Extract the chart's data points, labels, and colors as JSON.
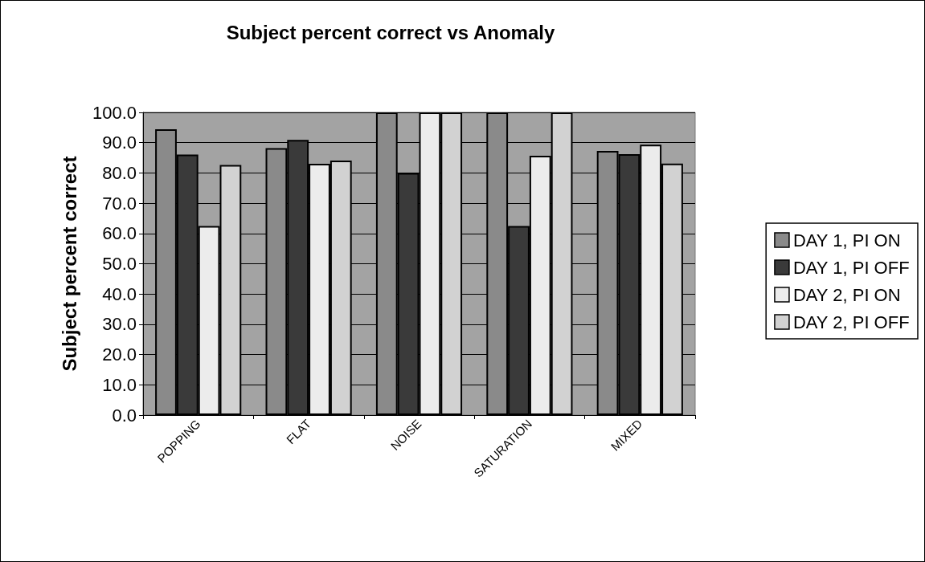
{
  "chart_data": {
    "type": "bar",
    "title": "Subject percent correct vs Anomaly",
    "ylabel": "Subject percent correct",
    "categories": [
      "POPPING",
      "FLAT",
      "NOISE",
      "SATURATION",
      "MIXED"
    ],
    "series": [
      {
        "name": "DAY 1, PI ON",
        "color": "#8a8a8a",
        "values": [
          94.4,
          88.2,
          100,
          100,
          87.3
        ]
      },
      {
        "name": "DAY 1, PI OFF",
        "color": "#3a3a3a",
        "values": [
          86.1,
          90.9,
          80,
          62.5,
          86.2
        ]
      },
      {
        "name": "DAY 2, PI ON",
        "color": "#ececec",
        "values": [
          62.5,
          83.0,
          100,
          85.7,
          89.3
        ]
      },
      {
        "name": "DAY 2, PI OFF",
        "color": "#d2d2d2",
        "values": [
          82.6,
          84.1,
          100,
          100,
          83.1
        ]
      }
    ],
    "ylim": [
      0,
      100
    ],
    "yticks": [
      {
        "value": 0,
        "label": "0.0"
      },
      {
        "value": 10,
        "label": "10.0"
      },
      {
        "value": 20,
        "label": "20.0"
      },
      {
        "value": 30,
        "label": "30.0"
      },
      {
        "value": 40,
        "label": "40.0"
      },
      {
        "value": 50,
        "label": "50.0"
      },
      {
        "value": 60,
        "label": "60.0"
      },
      {
        "value": 70,
        "label": "70.0"
      },
      {
        "value": 80,
        "label": "80.0"
      },
      {
        "value": 90,
        "label": "90.0"
      },
      {
        "value": 100,
        "label": "100.0"
      }
    ],
    "grid": "y",
    "legend": "right"
  }
}
